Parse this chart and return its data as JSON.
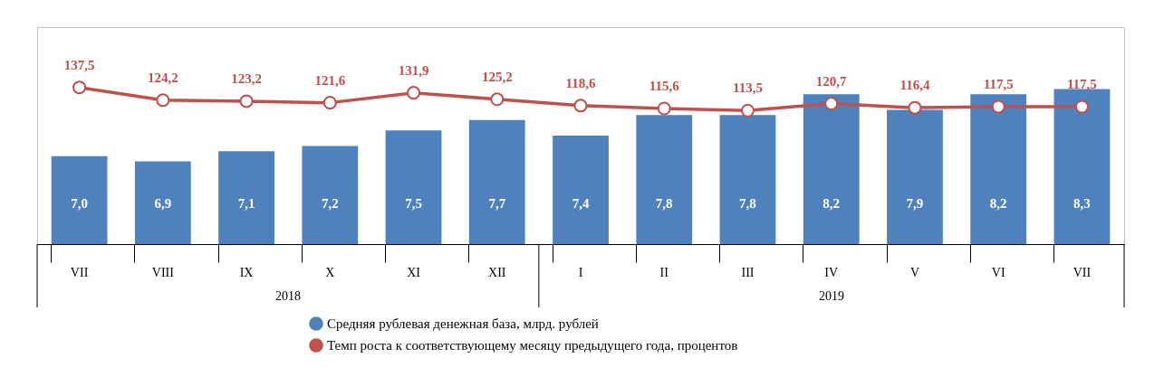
{
  "chart_data": {
    "type": "bar",
    "categories": [
      "VII",
      "VIII",
      "IX",
      "X",
      "XI",
      "XII",
      "I",
      "II",
      "III",
      "IV",
      "V",
      "VI",
      "VII"
    ],
    "series": [
      {
        "name": "Средняя рублевая денежная база, млрд. рублей",
        "color": "#4f81bd",
        "values": [
          7.0,
          6.9,
          7.1,
          7.2,
          7.5,
          7.7,
          7.4,
          7.8,
          7.8,
          8.2,
          7.9,
          8.2,
          8.3
        ],
        "value_labels": [
          "7,0",
          "6,9",
          "7,1",
          "7,2",
          "7,5",
          "7,7",
          "7,4",
          "7,8",
          "7,8",
          "8,2",
          "7,9",
          "8,2",
          "8,3"
        ]
      },
      {
        "name": "Темп роста к соответствующему месяцу предыдущего года, процентов",
        "type": "line",
        "axis": "y2",
        "color": "#c0504d",
        "values": [
          137.5,
          124.2,
          123.2,
          121.6,
          131.9,
          125.2,
          118.6,
          115.6,
          113.5,
          120.7,
          116.4,
          117.5,
          117.5
        ],
        "value_labels": [
          "137,5",
          "124,2",
          "123,2",
          "121,6",
          "131,9",
          "125,2",
          "118,6",
          "115,6",
          "113,5",
          "120,7",
          "116,4",
          "117,5",
          "117,5"
        ]
      }
    ],
    "ylim": [
      5.3,
      9.5
    ],
    "y2lim": [
      -25,
      200
    ],
    "tick_labels": "x",
    "legend": "bottom",
    "marker": "circle",
    "line_style": "solid",
    "annotations": [
      "2018",
      "2019"
    ]
  }
}
